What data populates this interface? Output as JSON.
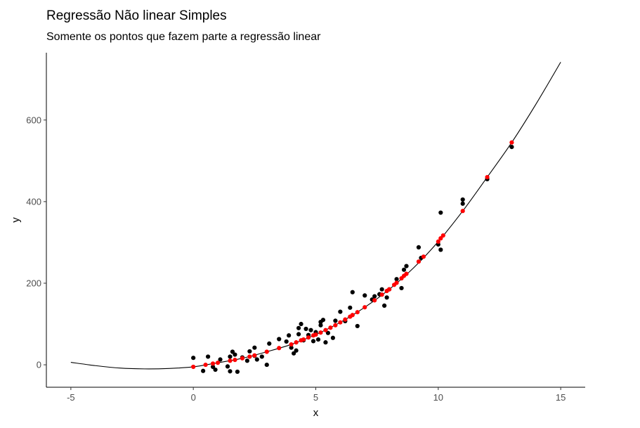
{
  "title": "Regressão Não linear Simples",
  "subtitle": "Somente os pontos que fazem parte a regressão linear",
  "chart_data": {
    "type": "scatter",
    "title": "Regressão Não linear Simples",
    "subtitle": "Somente os pontos que fazem parte a regressão linear",
    "xlabel": "x",
    "ylabel": "y",
    "xlim": [
      -6,
      16
    ],
    "ylim": [
      -55,
      765
    ],
    "x_ticks": [
      -5,
      0,
      5,
      10,
      15
    ],
    "x_tick_labels": [
      "-5",
      "0",
      "5",
      "10",
      "15"
    ],
    "y_ticks": [
      0,
      200,
      400,
      600
    ],
    "y_tick_labels": [
      "0",
      "200",
      "400",
      "600"
    ],
    "grid": false,
    "legend": "none",
    "colors": {
      "observed": "#000000",
      "fitted": "#ff0000",
      "curve": "#000000"
    },
    "fit_curve": {
      "x": [
        -5,
        -4,
        -3,
        -2,
        -1,
        0,
        1,
        2,
        3,
        4,
        5,
        6,
        7,
        8,
        9,
        10,
        11,
        12,
        13,
        14,
        15
      ],
      "y": [
        6,
        -2,
        -8,
        -10,
        -9,
        -5,
        5,
        16,
        32,
        50,
        74,
        104,
        141,
        185,
        238,
        302,
        377,
        460,
        545,
        640,
        742
      ]
    },
    "series": [
      {
        "role": "observed",
        "points": [
          [
            0,
            17
          ],
          [
            0.4,
            -15
          ],
          [
            0.6,
            20
          ],
          [
            0.8,
            -5
          ],
          [
            0.9,
            -12
          ],
          [
            1.1,
            13
          ],
          [
            1.4,
            -4
          ],
          [
            1.5,
            20
          ],
          [
            1.5,
            -16
          ],
          [
            1.6,
            32
          ],
          [
            1.7,
            25
          ],
          [
            1.8,
            -17
          ],
          [
            2.0,
            18
          ],
          [
            2.2,
            10
          ],
          [
            2.3,
            33
          ],
          [
            2.5,
            42
          ],
          [
            2.5,
            22
          ],
          [
            2.6,
            13
          ],
          [
            2.8,
            20
          ],
          [
            3.0,
            0
          ],
          [
            3.1,
            52
          ],
          [
            3.5,
            63
          ],
          [
            3.8,
            57
          ],
          [
            3.9,
            72
          ],
          [
            4.0,
            42
          ],
          [
            4.1,
            28
          ],
          [
            4.2,
            35
          ],
          [
            4.3,
            75
          ],
          [
            4.3,
            90
          ],
          [
            4.4,
            100
          ],
          [
            4.5,
            60
          ],
          [
            4.6,
            88
          ],
          [
            4.7,
            73
          ],
          [
            4.8,
            85
          ],
          [
            4.9,
            58
          ],
          [
            5.0,
            80
          ],
          [
            5.1,
            62
          ],
          [
            5.2,
            105
          ],
          [
            5.2,
            97
          ],
          [
            5.3,
            110
          ],
          [
            5.4,
            55
          ],
          [
            5.5,
            78
          ],
          [
            5.7,
            66
          ],
          [
            5.8,
            108
          ],
          [
            6.0,
            130
          ],
          [
            6.2,
            107
          ],
          [
            6.4,
            140
          ],
          [
            6.5,
            178
          ],
          [
            6.7,
            95
          ],
          [
            7.0,
            170
          ],
          [
            7.3,
            160
          ],
          [
            7.4,
            168
          ],
          [
            7.6,
            173
          ],
          [
            7.7,
            185
          ],
          [
            7.8,
            145
          ],
          [
            7.9,
            165
          ],
          [
            8.0,
            185
          ],
          [
            8.3,
            210
          ],
          [
            8.5,
            188
          ],
          [
            8.6,
            233
          ],
          [
            8.7,
            242
          ],
          [
            9.2,
            288
          ],
          [
            9.3,
            262
          ],
          [
            10.0,
            295
          ],
          [
            10.1,
            282
          ],
          [
            10.1,
            373
          ],
          [
            11.0,
            405
          ],
          [
            11.0,
            395
          ],
          [
            12.0,
            455
          ],
          [
            13.0,
            534
          ]
        ]
      },
      {
        "role": "fitted",
        "points": [
          [
            0,
            -5
          ],
          [
            0.5,
            0
          ],
          [
            0.8,
            3
          ],
          [
            1.0,
            5
          ],
          [
            1.5,
            10
          ],
          [
            1.7,
            12
          ],
          [
            2.0,
            16
          ],
          [
            2.3,
            20
          ],
          [
            2.5,
            23
          ],
          [
            3.0,
            32
          ],
          [
            3.5,
            41
          ],
          [
            4.0,
            50
          ],
          [
            4.2,
            55
          ],
          [
            4.4,
            60
          ],
          [
            4.5,
            62
          ],
          [
            4.7,
            67
          ],
          [
            4.9,
            72
          ],
          [
            5.0,
            74
          ],
          [
            5.2,
            79
          ],
          [
            5.4,
            85
          ],
          [
            5.6,
            91
          ],
          [
            5.8,
            97
          ],
          [
            6.0,
            104
          ],
          [
            6.2,
            111
          ],
          [
            6.4,
            118
          ],
          [
            6.5,
            122
          ],
          [
            6.7,
            129
          ],
          [
            7.0,
            141
          ],
          [
            7.4,
            158
          ],
          [
            7.7,
            172
          ],
          [
            7.9,
            181
          ],
          [
            8.0,
            185
          ],
          [
            8.2,
            196
          ],
          [
            8.3,
            201
          ],
          [
            8.5,
            212
          ],
          [
            8.6,
            218
          ],
          [
            8.7,
            223
          ],
          [
            9.2,
            253
          ],
          [
            9.4,
            265
          ],
          [
            10.0,
            302
          ],
          [
            10.1,
            310
          ],
          [
            10.2,
            317
          ],
          [
            11.0,
            377
          ],
          [
            12.0,
            460
          ],
          [
            13.0,
            545
          ]
        ]
      }
    ]
  }
}
